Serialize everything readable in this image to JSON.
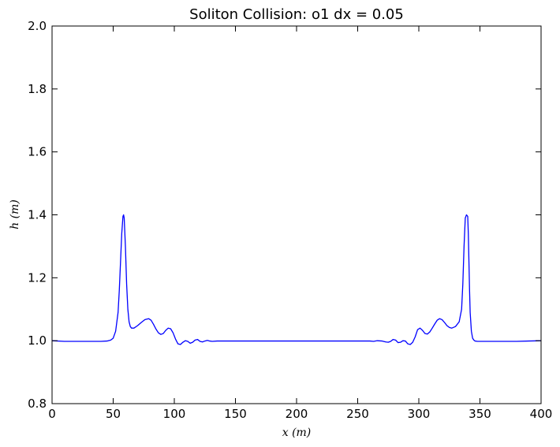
{
  "chart_data": {
    "type": "line",
    "title": "Soliton Collision: o1 dx = 0.05",
    "xlabel": "x (m)",
    "ylabel": "h (m)",
    "xlim": [
      0,
      400
    ],
    "ylim": [
      0.8,
      2.0
    ],
    "grid": false,
    "xticks": [
      "0",
      "50",
      "100",
      "150",
      "200",
      "250",
      "300",
      "350",
      "400"
    ],
    "yticks": [
      "0.8",
      "1.0",
      "1.2",
      "1.4",
      "1.6",
      "1.8",
      "2.0"
    ],
    "series": [
      {
        "color": "#0000ff",
        "x": [
          0,
          10,
          20,
          30,
          40,
          45,
          48,
          50,
          52,
          54,
          55,
          56,
          57,
          58,
          58.5,
          59,
          60,
          61,
          62,
          63,
          64,
          65,
          67,
          70,
          73,
          76,
          79,
          81,
          83,
          85,
          87,
          89,
          91,
          93,
          95,
          97,
          99,
          101,
          103,
          105,
          107,
          109,
          111,
          113,
          115,
          117,
          119,
          121,
          123,
          125,
          127,
          129,
          131,
          135,
          140,
          145,
          150,
          160,
          180,
          200,
          220,
          240,
          250,
          255,
          260,
          263,
          266,
          270,
          273,
          275,
          277,
          279,
          281,
          283,
          285,
          287,
          289,
          291,
          293,
          295,
          297,
          299,
          301,
          303,
          305,
          307,
          309,
          311,
          313,
          315,
          317,
          319,
          321,
          323,
          325,
          327,
          330,
          333,
          335,
          336,
          337,
          338,
          339,
          340,
          340.5,
          341,
          341.5,
          342,
          343,
          344,
          345,
          346,
          348,
          350,
          355,
          360,
          370,
          380,
          390,
          400
        ],
        "y": [
          1.0,
          0.998,
          0.998,
          0.998,
          0.998,
          0.999,
          1.002,
          1.008,
          1.03,
          1.09,
          1.16,
          1.25,
          1.34,
          1.395,
          1.4,
          1.39,
          1.3,
          1.18,
          1.1,
          1.06,
          1.045,
          1.04,
          1.04,
          1.048,
          1.058,
          1.067,
          1.07,
          1.065,
          1.052,
          1.037,
          1.025,
          1.02,
          1.023,
          1.033,
          1.04,
          1.038,
          1.025,
          1.005,
          0.99,
          0.988,
          0.995,
          1.0,
          0.998,
          0.992,
          0.995,
          1.002,
          1.004,
          0.998,
          0.996,
          0.999,
          1.001,
          0.999,
          0.998,
          0.999,
          0.999,
          0.999,
          0.999,
          0.999,
          0.999,
          0.999,
          0.999,
          0.999,
          0.999,
          0.999,
          0.999,
          0.998,
          1.0,
          0.999,
          0.996,
          0.995,
          0.998,
          1.004,
          1.002,
          0.994,
          0.995,
          1.0,
          0.999,
          0.99,
          0.988,
          0.995,
          1.012,
          1.035,
          1.04,
          1.033,
          1.023,
          1.021,
          1.028,
          1.04,
          1.053,
          1.065,
          1.07,
          1.067,
          1.058,
          1.048,
          1.042,
          1.04,
          1.045,
          1.06,
          1.1,
          1.18,
          1.3,
          1.39,
          1.4,
          1.395,
          1.34,
          1.25,
          1.16,
          1.09,
          1.03,
          1.008,
          1.002,
          0.999,
          0.998,
          0.998,
          0.998,
          0.998,
          0.998,
          0.998,
          0.999,
          1.0
        ]
      }
    ]
  }
}
